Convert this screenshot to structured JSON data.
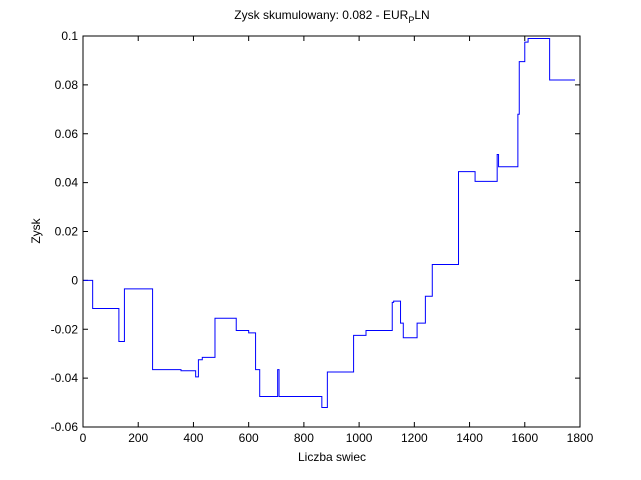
{
  "chart_data": {
    "type": "line",
    "title_main": "Zysk skumulowany: 0.082 - EUR",
    "title_sub": "P",
    "title_end": "LN",
    "xlabel": "Liczba swiec",
    "ylabel": "Zysk",
    "xlim": [
      0,
      1800
    ],
    "ylim": [
      -0.06,
      0.1
    ],
    "xticks": [
      0,
      200,
      400,
      600,
      800,
      1000,
      1200,
      1400,
      1600,
      1800
    ],
    "yticks": [
      -0.06,
      -0.04,
      -0.02,
      0,
      0.02,
      0.04,
      0.06,
      0.08,
      0.1
    ],
    "ytick_labels": [
      "-0.06",
      "-0.04",
      "-0.02",
      "0",
      "0.02",
      "0.04",
      "0.06",
      "0.08",
      "0.1"
    ],
    "grid": false,
    "line_color": "#0000ff",
    "series": [
      {
        "x": [
          0,
          35,
          35,
          130,
          130,
          150,
          150,
          252,
          252,
          355,
          355,
          408,
          408,
          418,
          418,
          432,
          432,
          478,
          478,
          555,
          555,
          600,
          600,
          625,
          625,
          640,
          640,
          700,
          705,
          705,
          710,
          710,
          865,
          865,
          885,
          885,
          980,
          980,
          1025,
          1025,
          1120,
          1120,
          1125,
          1125,
          1150,
          1150,
          1160,
          1160,
          1210,
          1210,
          1240,
          1240,
          1265,
          1265,
          1268,
          1268,
          1360,
          1360,
          1420,
          1420,
          1500,
          1500,
          1505,
          1505,
          1575,
          1575,
          1580,
          1580,
          1600,
          1600,
          1612,
          1612,
          1690,
          1690,
          1782
        ],
        "y": [
          0,
          0,
          -0.0115,
          -0.0115,
          -0.025,
          -0.025,
          -0.0035,
          -0.0035,
          -0.0365,
          -0.0365,
          -0.037,
          -0.037,
          -0.0395,
          -0.0395,
          -0.0325,
          -0.0325,
          -0.0315,
          -0.0315,
          -0.0155,
          -0.0155,
          -0.0205,
          -0.0205,
          -0.0215,
          -0.0215,
          -0.0365,
          -0.0365,
          -0.0475,
          -0.0475,
          -0.0475,
          -0.0365,
          -0.0365,
          -0.0475,
          -0.0475,
          -0.052,
          -0.052,
          -0.0375,
          -0.0375,
          -0.0225,
          -0.0225,
          -0.0205,
          -0.0205,
          -0.009,
          -0.009,
          -0.0085,
          -0.0085,
          -0.0175,
          -0.0175,
          -0.0235,
          -0.0235,
          -0.0175,
          -0.0175,
          -0.0065,
          -0.0065,
          0.0065,
          0.0065,
          0.0065,
          0.0065,
          0.0445,
          0.0445,
          0.0405,
          0.0405,
          0.0515,
          0.0515,
          0.0465,
          0.0465,
          0.068,
          0.068,
          0.0895,
          0.0895,
          0.0975,
          0.0975,
          0.099,
          0.099,
          0.082,
          0.082
        ]
      }
    ]
  }
}
